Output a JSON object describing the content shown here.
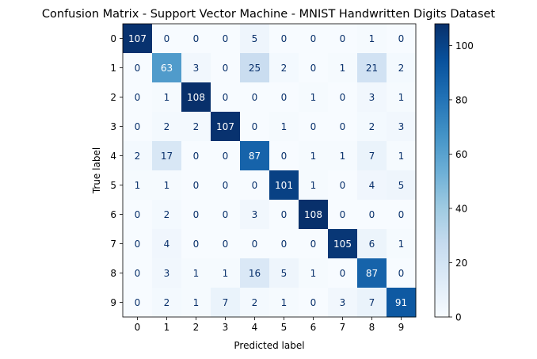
{
  "chart_data": {
    "type": "heatmap",
    "title": "Confusion Matrix - Support Vector Machine - MNIST Handwritten Digits Dataset",
    "xlabel": "Predicted label",
    "ylabel": "True label",
    "categories": [
      "0",
      "1",
      "2",
      "3",
      "4",
      "5",
      "6",
      "7",
      "8",
      "9"
    ],
    "matrix": [
      [
        107,
        0,
        0,
        0,
        5,
        0,
        0,
        0,
        1,
        0
      ],
      [
        0,
        63,
        3,
        0,
        25,
        2,
        0,
        1,
        21,
        2
      ],
      [
        0,
        1,
        108,
        0,
        0,
        0,
        1,
        0,
        3,
        1
      ],
      [
        0,
        2,
        2,
        107,
        0,
        1,
        0,
        0,
        2,
        3
      ],
      [
        2,
        17,
        0,
        0,
        87,
        0,
        1,
        1,
        7,
        1
      ],
      [
        1,
        1,
        0,
        0,
        0,
        101,
        1,
        0,
        4,
        5
      ],
      [
        0,
        2,
        0,
        0,
        3,
        0,
        108,
        0,
        0,
        0
      ],
      [
        0,
        4,
        0,
        0,
        0,
        0,
        0,
        105,
        6,
        1
      ],
      [
        0,
        3,
        1,
        1,
        16,
        5,
        1,
        0,
        87,
        0
      ],
      [
        0,
        2,
        1,
        7,
        2,
        1,
        0,
        3,
        7,
        91
      ]
    ],
    "colormap": "Blues",
    "colorbar": {
      "min": 0,
      "max": 108,
      "ticks": [
        0,
        20,
        40,
        60,
        80,
        100
      ]
    },
    "grid": false
  }
}
